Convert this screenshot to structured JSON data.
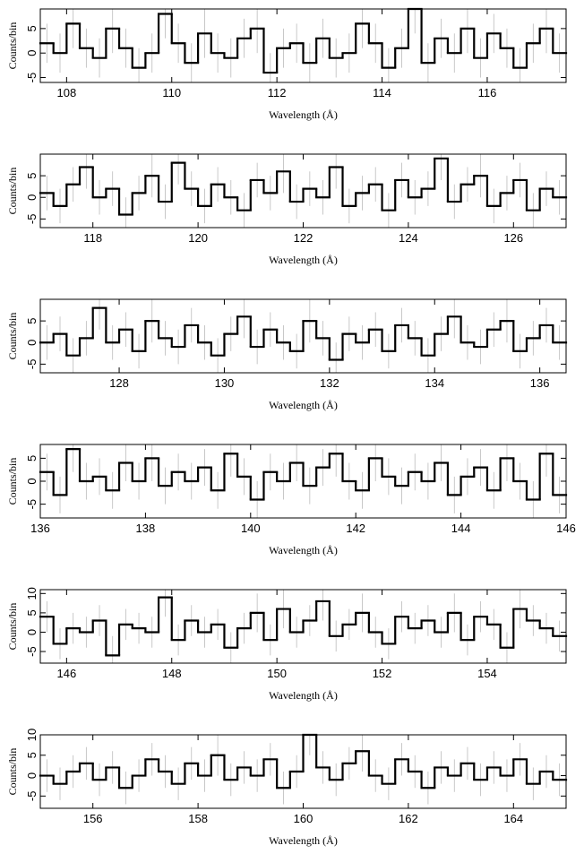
{
  "chart_data": [
    {
      "type": "histogram",
      "x_label": "Wavelength (Å)",
      "y_label": "Counts/bin",
      "color": "#000000",
      "error_color": "#bbbbbb",
      "bins": [
        107.5,
        107.75,
        108,
        108.25,
        108.5,
        108.75,
        109,
        109.25,
        109.5,
        109.75,
        110,
        110.25,
        110.5,
        110.75,
        111,
        111.25,
        111.5,
        111.75,
        112,
        112.25,
        112.5,
        112.75,
        113,
        113.25,
        113.5,
        113.75,
        114,
        114.25,
        114.5,
        114.75,
        115,
        115.25,
        115.5,
        115.75,
        116,
        116.25,
        116.5,
        116.75,
        117,
        117.25,
        117.5
      ],
      "values": [
        2,
        0,
        6,
        1,
        -1,
        5,
        1,
        -3,
        0,
        8,
        2,
        -2,
        4,
        0,
        -1,
        3,
        5,
        -4,
        1,
        2,
        -2,
        3,
        -1,
        0,
        6,
        2,
        -3,
        1,
        9,
        -2,
        3,
        0,
        5,
        -1,
        4,
        1,
        -3,
        2,
        5,
        0
      ],
      "errors": [
        4,
        4,
        5,
        4,
        4,
        5,
        4,
        4,
        4,
        5,
        4,
        4,
        5,
        4,
        4,
        4,
        5,
        4,
        4,
        4,
        4,
        4,
        4,
        4,
        5,
        4,
        4,
        4,
        5,
        4,
        4,
        4,
        5,
        4,
        4,
        4,
        4,
        4,
        5,
        4
      ],
      "xlim": [
        107.5,
        117.5
      ],
      "xticks": [
        108,
        110,
        112,
        114,
        116
      ],
      "ylim": [
        -6,
        9
      ],
      "yticks": [
        -5,
        0,
        5
      ]
    },
    {
      "type": "histogram",
      "x_label": "Wavelength (Å)",
      "y_label": "Counts/bin",
      "color": "#000000",
      "error_color": "#bbbbbb",
      "bins": [
        117,
        117.25,
        117.5,
        117.75,
        118,
        118.25,
        118.5,
        118.75,
        119,
        119.25,
        119.5,
        119.75,
        120,
        120.25,
        120.5,
        120.75,
        121,
        121.25,
        121.5,
        121.75,
        122,
        122.25,
        122.5,
        122.75,
        123,
        123.25,
        123.5,
        123.75,
        124,
        124.25,
        124.5,
        124.75,
        125,
        125.25,
        125.5,
        125.75,
        126,
        126.25,
        126.5,
        126.75,
        127
      ],
      "values": [
        1,
        -2,
        3,
        7,
        0,
        2,
        -4,
        1,
        5,
        -1,
        8,
        2,
        -2,
        3,
        0,
        -3,
        4,
        1,
        6,
        -1,
        2,
        0,
        7,
        -2,
        1,
        3,
        -3,
        4,
        0,
        2,
        9,
        -1,
        3,
        5,
        -2,
        1,
        4,
        -3,
        2,
        0
      ],
      "errors": [
        4,
        4,
        4,
        5,
        4,
        4,
        4,
        4,
        5,
        4,
        5,
        4,
        4,
        4,
        4,
        4,
        4,
        4,
        5,
        4,
        4,
        4,
        5,
        4,
        4,
        4,
        4,
        4,
        4,
        4,
        5,
        4,
        4,
        5,
        4,
        4,
        4,
        4,
        4,
        4
      ],
      "xlim": [
        117,
        127
      ],
      "xticks": [
        118,
        120,
        122,
        124,
        126
      ],
      "ylim": [
        -7,
        10
      ],
      "yticks": [
        -5,
        0,
        5
      ]
    },
    {
      "type": "histogram",
      "x_label": "Wavelength (Å)",
      "y_label": "Counts/bin",
      "color": "#000000",
      "error_color": "#bbbbbb",
      "bins": [
        126.5,
        126.75,
        127,
        127.25,
        127.5,
        127.75,
        128,
        128.25,
        128.5,
        128.75,
        129,
        129.25,
        129.5,
        129.75,
        130,
        130.25,
        130.5,
        130.75,
        131,
        131.25,
        131.5,
        131.75,
        132,
        132.25,
        132.5,
        132.75,
        133,
        133.25,
        133.5,
        133.75,
        134,
        134.25,
        134.5,
        134.75,
        135,
        135.25,
        135.5,
        135.75,
        136,
        136.25,
        136.5
      ],
      "values": [
        0,
        2,
        -3,
        1,
        8,
        0,
        3,
        -2,
        5,
        1,
        -1,
        4,
        0,
        -3,
        2,
        6,
        -1,
        3,
        0,
        -2,
        5,
        1,
        -4,
        2,
        0,
        3,
        -2,
        4,
        1,
        -3,
        2,
        6,
        0,
        -1,
        3,
        5,
        -2,
        1,
        4,
        0
      ],
      "errors": [
        4,
        4,
        4,
        4,
        5,
        4,
        4,
        4,
        5,
        4,
        4,
        4,
        4,
        4,
        4,
        5,
        4,
        4,
        4,
        4,
        5,
        4,
        4,
        4,
        4,
        4,
        4,
        4,
        4,
        4,
        4,
        5,
        4,
        4,
        4,
        5,
        4,
        4,
        4,
        4
      ],
      "xlim": [
        126.5,
        136.5
      ],
      "xticks": [
        128,
        130,
        132,
        134,
        136
      ],
      "ylim": [
        -7,
        10
      ],
      "yticks": [
        -5,
        0,
        5
      ]
    },
    {
      "type": "histogram",
      "x_label": "Wavelength (Å)",
      "y_label": "Counts/bin",
      "color": "#000000",
      "error_color": "#bbbbbb",
      "bins": [
        136,
        136.25,
        136.5,
        136.75,
        137,
        137.25,
        137.5,
        137.75,
        138,
        138.25,
        138.5,
        138.75,
        139,
        139.25,
        139.5,
        139.75,
        140,
        140.25,
        140.5,
        140.75,
        141,
        141.25,
        141.5,
        141.75,
        142,
        142.25,
        142.5,
        142.75,
        143,
        143.25,
        143.5,
        143.75,
        144,
        144.25,
        144.5,
        144.75,
        145,
        145.25,
        145.5,
        145.75,
        146
      ],
      "values": [
        2,
        -3,
        7,
        0,
        1,
        -2,
        4,
        0,
        5,
        -1,
        2,
        0,
        3,
        -2,
        6,
        1,
        -4,
        2,
        0,
        4,
        -1,
        3,
        6,
        0,
        -2,
        5,
        1,
        -1,
        2,
        0,
        4,
        -3,
        1,
        3,
        -2,
        5,
        0,
        -4,
        6,
        -3
      ],
      "errors": [
        4,
        4,
        5,
        4,
        4,
        4,
        4,
        4,
        5,
        4,
        4,
        4,
        4,
        4,
        5,
        4,
        4,
        4,
        4,
        4,
        4,
        4,
        5,
        4,
        4,
        5,
        4,
        4,
        4,
        4,
        4,
        4,
        4,
        4,
        4,
        5,
        4,
        4,
        5,
        4
      ],
      "xlim": [
        136,
        146
      ],
      "xticks": [
        136,
        138,
        140,
        142,
        144,
        146
      ],
      "ylim": [
        -8,
        8
      ],
      "yticks": [
        -5,
        0,
        5
      ]
    },
    {
      "type": "histogram",
      "x_label": "Wavelength (Å)",
      "y_label": "Counts/bin",
      "color": "#000000",
      "error_color": "#bbbbbb",
      "bins": [
        145.5,
        145.75,
        146,
        146.25,
        146.5,
        146.75,
        147,
        147.25,
        147.5,
        147.75,
        148,
        148.25,
        148.5,
        148.75,
        149,
        149.25,
        149.5,
        149.75,
        150,
        150.25,
        150.5,
        150.75,
        151,
        151.25,
        151.5,
        151.75,
        152,
        152.25,
        152.5,
        152.75,
        153,
        153.25,
        153.5,
        153.75,
        154,
        154.25,
        154.5,
        154.75,
        155,
        155.25,
        155.5
      ],
      "values": [
        4,
        -3,
        1,
        0,
        3,
        -6,
        2,
        1,
        0,
        9,
        -2,
        3,
        0,
        2,
        -4,
        1,
        5,
        -2,
        6,
        0,
        3,
        8,
        -1,
        2,
        5,
        0,
        -3,
        4,
        1,
        3,
        0,
        5,
        -2,
        4,
        2,
        -4,
        6,
        3,
        1,
        -1
      ],
      "errors": [
        4,
        4,
        4,
        4,
        4,
        5,
        4,
        4,
        4,
        5,
        4,
        4,
        4,
        4,
        4,
        4,
        5,
        4,
        5,
        4,
        4,
        5,
        4,
        4,
        5,
        4,
        4,
        4,
        4,
        4,
        4,
        5,
        4,
        4,
        4,
        4,
        5,
        4,
        4,
        4
      ],
      "xlim": [
        145.5,
        155.5
      ],
      "xticks": [
        146,
        148,
        150,
        152,
        154
      ],
      "ylim": [
        -8,
        11
      ],
      "yticks": [
        -5,
        0,
        5,
        10
      ]
    },
    {
      "type": "histogram",
      "x_label": "Wavelength (Å)",
      "y_label": "Counts/bin",
      "color": "#000000",
      "error_color": "#bbbbbb",
      "bins": [
        155,
        155.25,
        155.5,
        155.75,
        156,
        156.25,
        156.5,
        156.75,
        157,
        157.25,
        157.5,
        157.75,
        158,
        158.25,
        158.5,
        158.75,
        159,
        159.25,
        159.5,
        159.75,
        160,
        160.25,
        160.5,
        160.75,
        161,
        161.25,
        161.5,
        161.75,
        162,
        162.25,
        162.5,
        162.75,
        163,
        163.25,
        163.5,
        163.75,
        164,
        164.25,
        164.5,
        164.75,
        165
      ],
      "values": [
        0,
        -2,
        1,
        3,
        -1,
        2,
        -3,
        0,
        4,
        1,
        -2,
        3,
        0,
        5,
        -1,
        2,
        0,
        4,
        -3,
        1,
        10,
        2,
        -1,
        3,
        6,
        0,
        -2,
        4,
        1,
        -3,
        2,
        0,
        3,
        -1,
        2,
        0,
        4,
        -2,
        1,
        -1
      ],
      "errors": [
        4,
        4,
        4,
        4,
        4,
        4,
        4,
        4,
        4,
        4,
        4,
        4,
        4,
        5,
        4,
        4,
        4,
        4,
        4,
        4,
        5,
        4,
        4,
        4,
        5,
        4,
        4,
        4,
        4,
        4,
        4,
        4,
        4,
        4,
        4,
        4,
        4,
        4,
        4,
        4
      ],
      "xlim": [
        155,
        165
      ],
      "xticks": [
        156,
        158,
        160,
        162,
        164
      ],
      "ylim": [
        -8,
        10
      ],
      "yticks": [
        -5,
        0,
        5,
        10
      ]
    }
  ]
}
